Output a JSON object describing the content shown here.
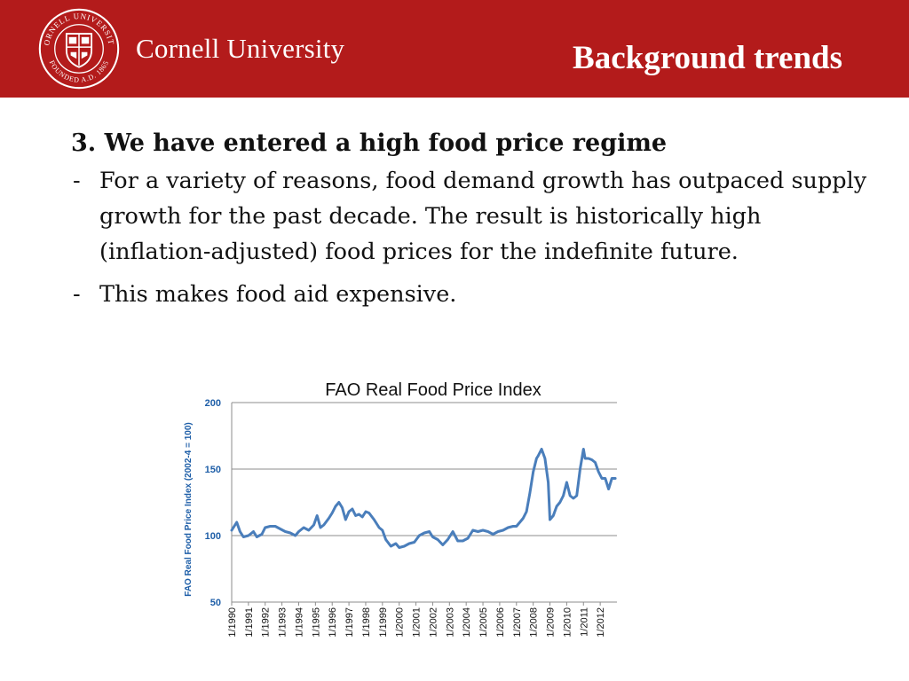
{
  "header": {
    "brand": "Cornell University",
    "slide_title": "Background trends",
    "seal_text_top": "CORNELL UNIVERSITY",
    "seal_text_bottom": "FOUNDED A.D. 1865",
    "colors": {
      "band": "#b31b1b",
      "text": "#ffffff"
    }
  },
  "content": {
    "heading": "3. We have entered a high food price regime",
    "bullets": [
      {
        "marker": "-",
        "text": "For a variety of reasons, food demand growth has outpaced supply growth for the past decade. The result is historically high (inflation-adjusted) food prices for the indefinite future."
      },
      {
        "marker": "-",
        "text": "This makes food aid expensive."
      }
    ]
  },
  "chart_data": {
    "type": "line",
    "title": "FAO Real Food Price Index",
    "xlabel": "",
    "ylabel": "FAO  Real Food Price Index (2002-4 = 100)",
    "ylim": [
      50,
      200
    ],
    "yticks": [
      50,
      100,
      150,
      200
    ],
    "xlim": [
      1990.0,
      2013.0
    ],
    "xtick_labels": [
      "1/1990",
      "1/1991",
      "1/1992",
      "1/1993",
      "1/1994",
      "1/1995",
      "1/1996",
      "1/1997",
      "1/1998",
      "1/1999",
      "1/2000",
      "1/2001",
      "1/2002",
      "1/2003",
      "1/2004",
      "1/2005",
      "1/2006",
      "1/2007",
      "1/2008",
      "1/2009",
      "1/2010",
      "1/2011",
      "1/2012"
    ],
    "grid": "horizontal",
    "legend": "none",
    "series": [
      {
        "color": "#4a7ebb",
        "x": [
          1990.0,
          1990.3,
          1990.5,
          1990.7,
          1991.0,
          1991.3,
          1991.5,
          1991.8,
          1992.0,
          1992.3,
          1992.6,
          1992.9,
          1993.2,
          1993.5,
          1993.8,
          1994.0,
          1994.3,
          1994.6,
          1994.9,
          1995.1,
          1995.3,
          1995.5,
          1995.8,
          1996.0,
          1996.2,
          1996.4,
          1996.6,
          1996.8,
          1997.0,
          1997.2,
          1997.4,
          1997.6,
          1997.8,
          1998.0,
          1998.2,
          1998.5,
          1998.8,
          1999.0,
          1999.2,
          1999.5,
          1999.8,
          2000.0,
          2000.3,
          2000.6,
          2000.9,
          2001.2,
          2001.5,
          2001.8,
          2002.0,
          2002.3,
          2002.6,
          2002.9,
          2003.2,
          2003.5,
          2003.8,
          2004.1,
          2004.4,
          2004.7,
          2005.0,
          2005.3,
          2005.6,
          2005.9,
          2006.2,
          2006.5,
          2006.8,
          2007.0,
          2007.2,
          2007.4,
          2007.6,
          2007.8,
          2008.0,
          2008.2,
          2008.3,
          2008.5,
          2008.7,
          2008.9,
          2009.0,
          2009.2,
          2009.4,
          2009.6,
          2009.8,
          2010.0,
          2010.2,
          2010.4,
          2010.6,
          2010.8,
          2011.0,
          2011.1,
          2011.3,
          2011.5,
          2011.7,
          2011.9,
          2012.1,
          2012.3,
          2012.5,
          2012.7,
          2012.9
        ],
        "values": [
          104,
          110,
          103,
          99,
          100,
          103,
          99,
          101,
          106,
          107,
          107,
          105,
          103,
          102,
          100,
          103,
          106,
          104,
          108,
          115,
          106,
          108,
          113,
          117,
          122,
          125,
          121,
          112,
          118,
          120,
          115,
          116,
          114,
          118,
          117,
          112,
          106,
          104,
          97,
          92,
          94,
          91,
          92,
          94,
          95,
          100,
          102,
          103,
          99,
          97,
          93,
          97,
          103,
          96,
          96,
          98,
          104,
          103,
          104,
          103,
          101,
          103,
          104,
          106,
          107,
          107,
          110,
          113,
          118,
          132,
          148,
          158,
          160,
          165,
          158,
          140,
          112,
          115,
          122,
          125,
          130,
          140,
          130,
          128,
          130,
          150,
          165,
          158,
          158,
          157,
          155,
          148,
          143,
          143,
          135,
          143,
          143
        ]
      }
    ]
  }
}
